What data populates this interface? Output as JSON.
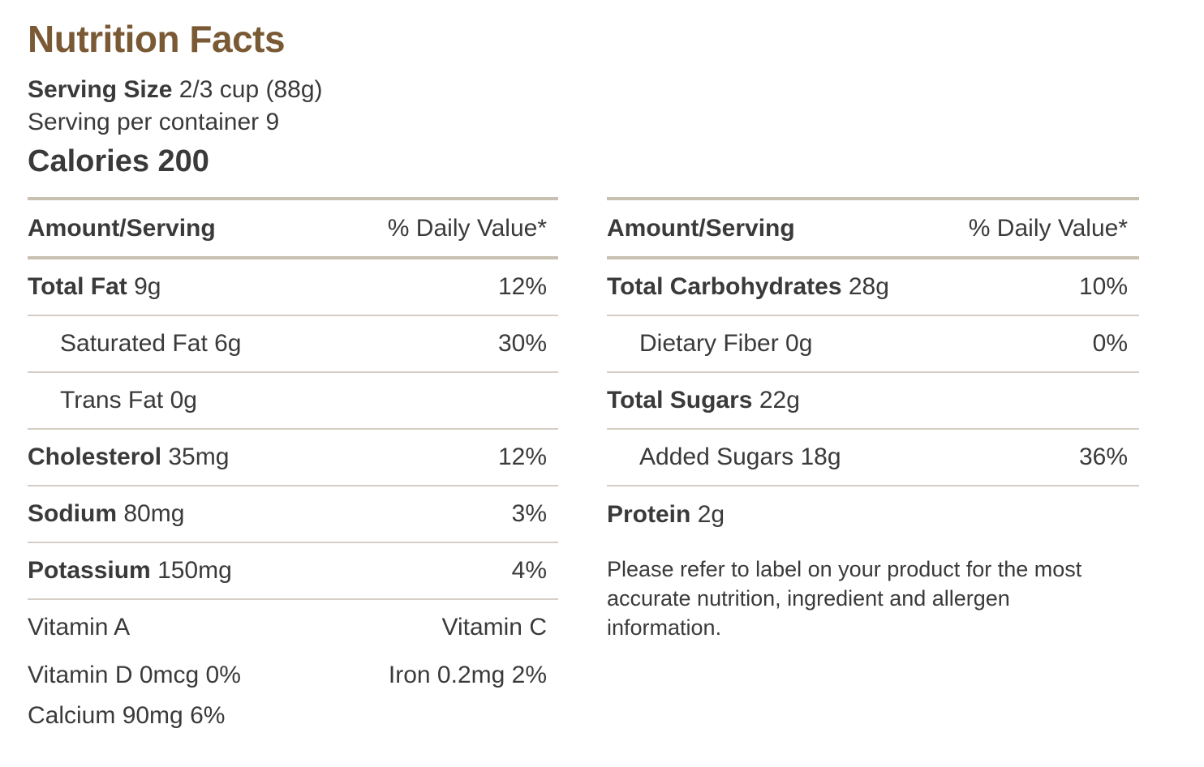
{
  "title": "Nutrition Facts",
  "serving": {
    "label": "Serving Size",
    "value": "2/3 cup (88g)"
  },
  "servings_per_container": "Serving per container 9",
  "calories": "Calories 200",
  "left": {
    "header": {
      "amount": "Amount/Serving",
      "dv": "% Daily Value*"
    },
    "rows": [
      {
        "name": "Total Fat",
        "amount": "9g",
        "dv": "12%"
      },
      {
        "name": "Saturated Fat 6g",
        "dv": "30%"
      },
      {
        "name": "Trans Fat 0g",
        "dv": ""
      },
      {
        "name": "Cholesterol",
        "amount": "35mg",
        "dv": "12%"
      },
      {
        "name": "Sodium",
        "amount": "80mg",
        "dv": "3%"
      },
      {
        "name": "Potassium",
        "amount": "150mg",
        "dv": "4%"
      }
    ],
    "vitamins": [
      {
        "left": "Vitamin A",
        "right": "Vitamin C"
      },
      {
        "left": "Vitamin D 0mcg 0%",
        "right": "Iron 0.2mg 2%"
      },
      {
        "left": "Calcium 90mg 6%",
        "right": ""
      }
    ]
  },
  "right": {
    "header": {
      "amount": "Amount/Serving",
      "dv": "% Daily Value*"
    },
    "rows": [
      {
        "name": "Total Carbohydrates",
        "amount": "28g",
        "dv": "10%"
      },
      {
        "name": "Dietary Fiber 0g",
        "dv": "0%"
      },
      {
        "name": "Total Sugars",
        "amount": "22g",
        "dv": ""
      },
      {
        "name": "Added Sugars 18g",
        "dv": "36%"
      },
      {
        "name": "Protein",
        "amount": "2g",
        "dv": ""
      }
    ],
    "note": "Please refer to label on your product for the most accurate nutrition, ingredient and allergen information."
  }
}
